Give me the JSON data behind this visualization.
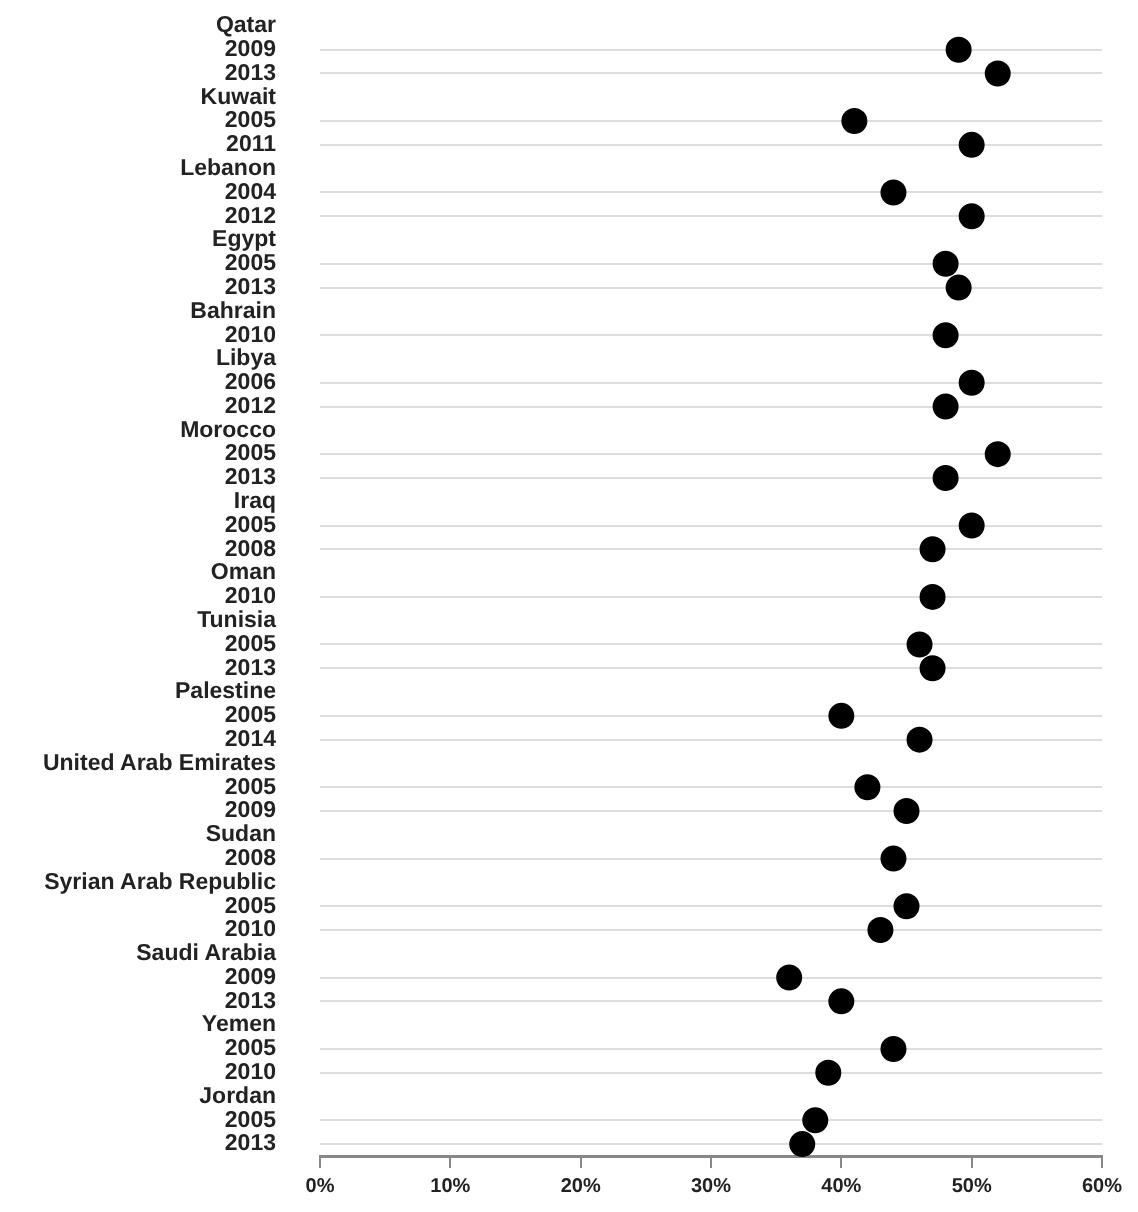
{
  "chart_data": {
    "type": "scatter",
    "orientation": "horizontal",
    "marker": "circle",
    "grid": "y",
    "legend": false,
    "categories": [
      "Qatar",
      "2009",
      "2013",
      "Kuwait",
      "2005",
      "2011",
      "Lebanon",
      "2004",
      "2012",
      "Egypt",
      "2005",
      "2013",
      "Bahrain",
      "2010",
      "Libya",
      "2006",
      "2012",
      "Morocco",
      "2005",
      "2013",
      "Iraq",
      "2005",
      "2008",
      "Oman",
      "2010",
      "Tunisia",
      "2005",
      "2013",
      "Palestine",
      "2005",
      "2014",
      "United Arab Emirates",
      "2005",
      "2009",
      "Sudan",
      "2008",
      "Syrian Arab Republic",
      "2005",
      "2010",
      "Saudi Arabia",
      "2009",
      "2013",
      "Yemen",
      "2005",
      "2010",
      "Jordan",
      "2005",
      "2013"
    ],
    "series": [
      {
        "color": "#000000",
        "values": [
          null,
          49,
          52,
          null,
          41,
          50,
          null,
          44,
          50,
          null,
          48,
          49,
          null,
          48,
          null,
          50,
          48,
          null,
          52,
          48,
          null,
          50,
          47,
          null,
          47,
          null,
          46,
          47,
          null,
          40,
          46,
          null,
          42,
          45,
          null,
          44,
          null,
          45,
          43,
          null,
          36,
          40,
          null,
          44,
          39,
          null,
          38,
          37
        ]
      }
    ],
    "xlim": [
      0,
      60
    ],
    "xticks": [
      {
        "value": 0,
        "label": "0%"
      },
      {
        "value": 10,
        "label": "10%"
      },
      {
        "value": 20,
        "label": "20%"
      },
      {
        "value": 30,
        "label": "30%"
      },
      {
        "value": 40,
        "label": "40%"
      },
      {
        "value": 50,
        "label": "50%"
      },
      {
        "value": 60,
        "label": "60%"
      }
    ]
  }
}
